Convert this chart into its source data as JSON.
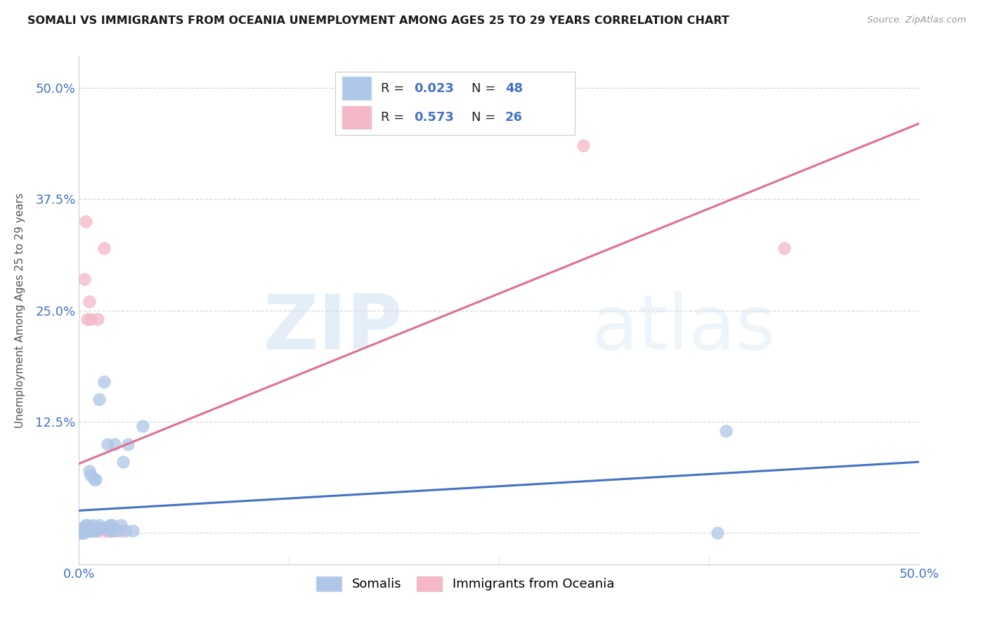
{
  "title": "SOMALI VS IMMIGRANTS FROM OCEANIA UNEMPLOYMENT AMONG AGES 25 TO 29 YEARS CORRELATION CHART",
  "source": "Source: ZipAtlas.com",
  "ylabel": "Unemployment Among Ages 25 to 29 years",
  "r1": "0.023",
  "n1": "48",
  "r2": "0.573",
  "n2": "26",
  "legend_label1": "Somalis",
  "legend_label2": "Immigrants from Oceania",
  "watermark_zip": "ZIP",
  "watermark_atlas": "atlas",
  "xlim": [
    0.0,
    0.5
  ],
  "ylim": [
    -0.035,
    0.535
  ],
  "color_somali_fill": "#aec6e8",
  "color_oceania_fill": "#f4b8c8",
  "color_somali_line": "#4472c4",
  "color_oceania_line": "#e07090",
  "color_axis_text": "#4472c4",
  "somali_x": [
    0.0,
    0.0,
    0.001,
    0.001,
    0.002,
    0.002,
    0.003,
    0.003,
    0.004,
    0.004,
    0.004,
    0.005,
    0.005,
    0.005,
    0.006,
    0.006,
    0.006,
    0.007,
    0.007,
    0.007,
    0.008,
    0.008,
    0.008,
    0.009,
    0.009,
    0.01,
    0.01,
    0.011,
    0.012,
    0.012,
    0.013,
    0.015,
    0.015,
    0.017,
    0.017,
    0.018,
    0.019,
    0.02,
    0.021,
    0.022,
    0.025,
    0.026,
    0.028,
    0.029,
    0.032,
    0.038,
    0.38,
    0.385
  ],
  "somali_y": [
    0.0,
    0.003,
    0.0,
    0.005,
    0.0,
    0.003,
    0.0,
    0.005,
    0.003,
    0.006,
    0.009,
    0.003,
    0.006,
    0.009,
    0.003,
    0.07,
    0.006,
    0.003,
    0.006,
    0.065,
    0.003,
    0.006,
    0.009,
    0.003,
    0.06,
    0.003,
    0.06,
    0.006,
    0.009,
    0.15,
    0.006,
    0.006,
    0.17,
    0.006,
    0.1,
    0.009,
    0.003,
    0.009,
    0.1,
    0.003,
    0.009,
    0.08,
    0.003,
    0.1,
    0.003,
    0.12,
    0.0,
    0.115
  ],
  "oceania_x": [
    0.0,
    0.001,
    0.002,
    0.003,
    0.004,
    0.005,
    0.005,
    0.006,
    0.006,
    0.007,
    0.007,
    0.008,
    0.008,
    0.009,
    0.01,
    0.011,
    0.012,
    0.013,
    0.015,
    0.016,
    0.017,
    0.018,
    0.02,
    0.025,
    0.3,
    0.42
  ],
  "oceania_y": [
    0.005,
    0.003,
    0.003,
    0.285,
    0.35,
    0.24,
    0.006,
    0.26,
    0.003,
    0.003,
    0.24,
    0.003,
    0.006,
    0.003,
    0.003,
    0.24,
    0.003,
    0.006,
    0.32,
    0.003,
    0.003,
    0.003,
    0.003,
    0.003,
    0.435,
    0.32
  ],
  "grid_color": "#d8d8d8",
  "bg_color": "#ffffff"
}
